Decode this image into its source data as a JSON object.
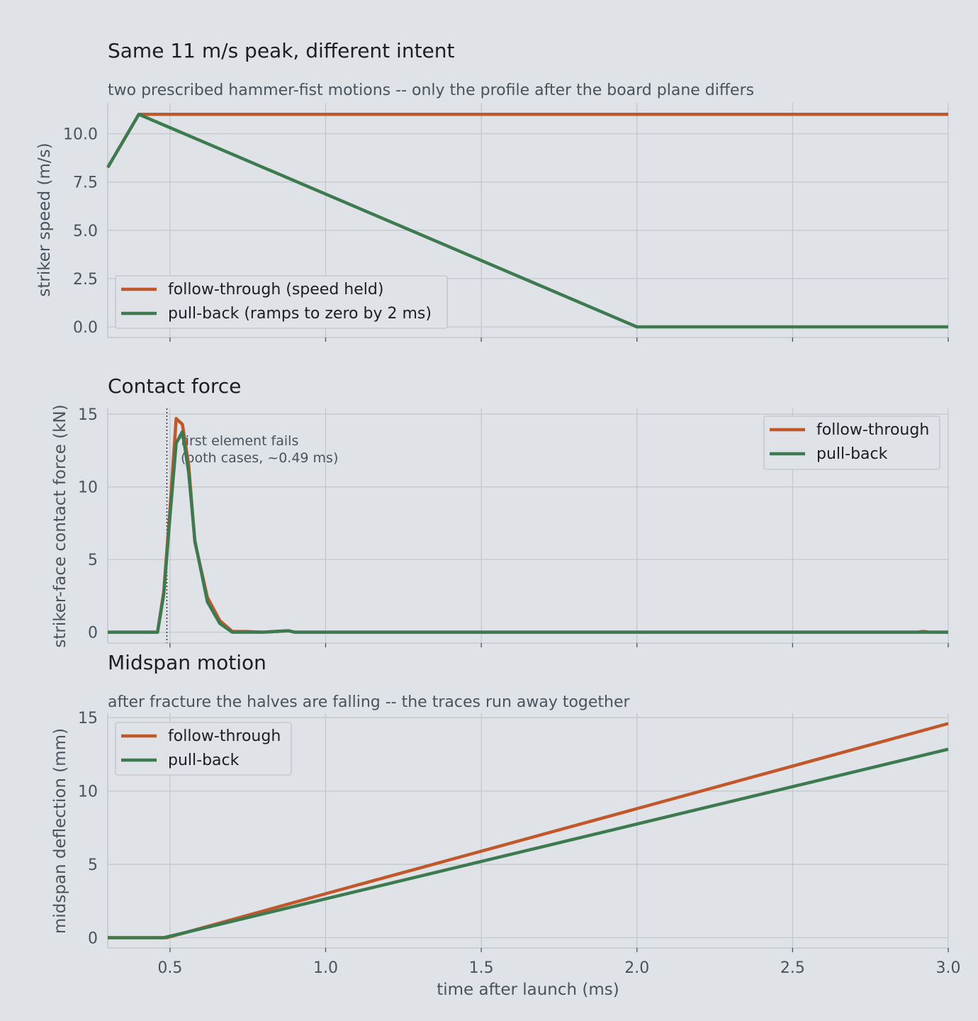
{
  "chart_data": [
    {
      "type": "line",
      "title": "Same 11 m/s peak, different intent",
      "subtitle": "two prescribed hammer-fist motions -- only the profile after the board plane differs",
      "xlabel": "",
      "ylabel": "striker speed (m/s)",
      "xlim": [
        0.3,
        3.0
      ],
      "ylim": [
        -0.55,
        11.6
      ],
      "xticks": [
        0.5,
        1.0,
        1.5,
        2.0,
        2.5,
        3.0
      ],
      "yticks": [
        0.0,
        2.5,
        5.0,
        7.5,
        10.0
      ],
      "ytick_labels": [
        "0.0",
        "2.5",
        "5.0",
        "7.5",
        "10.0"
      ],
      "show_xtick_labels": false,
      "grid": true,
      "legend_position": "lower-left",
      "series": [
        {
          "name": "follow-through (speed held)",
          "color": "#c0582b",
          "x": [
            0.3,
            0.4,
            3.0
          ],
          "y": [
            8.25,
            11.0,
            11.0
          ]
        },
        {
          "name": "pull-back (ramps to zero by 2 ms)",
          "color": "#3e7a50",
          "x": [
            0.3,
            0.4,
            2.0,
            3.0
          ],
          "y": [
            8.25,
            11.0,
            0.0,
            0.0
          ]
        }
      ]
    },
    {
      "type": "line",
      "title": "Contact force",
      "subtitle": "",
      "xlabel": "",
      "ylabel": "striker-face contact force (kN)",
      "xlim": [
        0.3,
        3.0
      ],
      "ylim": [
        -0.75,
        15.4
      ],
      "xticks": [
        0.5,
        1.0,
        1.5,
        2.0,
        2.5,
        3.0
      ],
      "yticks": [
        0,
        5,
        10,
        15
      ],
      "ytick_labels": [
        "0",
        "5",
        "10",
        "15"
      ],
      "show_xtick_labels": false,
      "grid": true,
      "legend_position": "upper-right",
      "vline": {
        "x": 0.49,
        "style": "dotted"
      },
      "annotation": {
        "lines": [
          "first element fails",
          "(both cases, ~0.49 ms)"
        ],
        "x": 0.49,
        "y": 13.2
      },
      "series": [
        {
          "name": "follow-through",
          "color": "#c0582b",
          "x": [
            0.3,
            0.46,
            0.48,
            0.5,
            0.52,
            0.54,
            0.56,
            0.58,
            0.62,
            0.66,
            0.7,
            0.74,
            0.8,
            0.88,
            0.9,
            1.0,
            2.9,
            2.92,
            2.94,
            3.0
          ],
          "y": [
            0,
            0,
            2.8,
            8.5,
            14.7,
            14.3,
            11.5,
            6.2,
            2.4,
            0.8,
            0.05,
            0.05,
            0.0,
            0.1,
            0.0,
            0.0,
            0.0,
            0.05,
            0.0,
            0.0
          ]
        },
        {
          "name": "pull-back",
          "color": "#3e7a50",
          "x": [
            0.3,
            0.46,
            0.48,
            0.5,
            0.52,
            0.54,
            0.56,
            0.58,
            0.62,
            0.66,
            0.7,
            0.74,
            0.8,
            0.88,
            0.9,
            1.0,
            3.0
          ],
          "y": [
            0,
            0,
            2.6,
            8.0,
            13.0,
            13.8,
            11.0,
            6.3,
            2.1,
            0.6,
            0.0,
            0.0,
            0.0,
            0.1,
            0.0,
            0.0,
            0.0
          ]
        }
      ]
    },
    {
      "type": "line",
      "title": "Midspan motion",
      "subtitle": "after fracture the halves are falling -- the traces run away together",
      "xlabel": "time after launch (ms)",
      "ylabel": "midspan deflection (mm)",
      "xlim": [
        0.3,
        3.0
      ],
      "ylim": [
        -0.7,
        15.3
      ],
      "xticks": [
        0.5,
        1.0,
        1.5,
        2.0,
        2.5,
        3.0
      ],
      "xtick_labels": [
        "0.5",
        "1.0",
        "1.5",
        "2.0",
        "2.5",
        "3.0"
      ],
      "yticks": [
        0,
        5,
        10,
        15
      ],
      "ytick_labels": [
        "0",
        "5",
        "10",
        "15"
      ],
      "show_xtick_labels": true,
      "grid": true,
      "legend_position": "upper-left",
      "series": [
        {
          "name": "follow-through",
          "color": "#c0582b",
          "x": [
            0.3,
            0.49,
            1.0,
            2.0,
            3.0
          ],
          "y": [
            0.0,
            0.0,
            3.0,
            8.8,
            14.6
          ]
        },
        {
          "name": "pull-back",
          "color": "#3e7a50",
          "x": [
            0.3,
            0.48,
            1.0,
            2.0,
            3.0
          ],
          "y": [
            0.0,
            0.0,
            2.65,
            7.75,
            12.85
          ]
        }
      ]
    }
  ]
}
